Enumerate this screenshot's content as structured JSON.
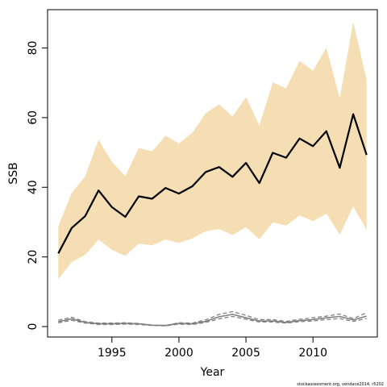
{
  "chart_data": {
    "type": "line",
    "title": "",
    "xlabel": "Year",
    "ylabel": "SSB",
    "xlim": [
      1990.2,
      2014.8
    ],
    "ylim": [
      -3,
      91
    ],
    "x_ticks": [
      1995,
      2000,
      2005,
      2010
    ],
    "y_ticks": [
      0,
      20,
      40,
      60,
      80
    ],
    "grid": false,
    "legend": "none",
    "footnote": "stockassessment.org,  vendace2014, r5202",
    "colors": {
      "band": "#f5deb3",
      "main_line": "#000000",
      "secondary_lines": "#808080"
    },
    "x": [
      1991,
      1992,
      1993,
      1994,
      1995,
      1996,
      1997,
      1998,
      1999,
      2000,
      2001,
      2002,
      2003,
      2004,
      2005,
      2006,
      2007,
      2008,
      2009,
      2010,
      2011,
      2012,
      2013,
      2014
    ],
    "series": [
      {
        "values": [
          21,
          28.3,
          31.7,
          39.1,
          34.3,
          31.5,
          37.4,
          36.7,
          39.8,
          38.2,
          40.3,
          44.4,
          45.8,
          43,
          47,
          41.2,
          49.9,
          48.5,
          54,
          51.8,
          56.1,
          45.6,
          61,
          49.3
        ]
      },
      {
        "lower": [
          13.6,
          18.5,
          20.6,
          25,
          22,
          20.3,
          23.8,
          23.3,
          25,
          24,
          25.3,
          27.4,
          28,
          26.3,
          28.5,
          25.1,
          29.9,
          29,
          31.9,
          30.3,
          32.4,
          26.4,
          34.5,
          27.8
        ],
        "upper": [
          28.8,
          38.4,
          43.1,
          53.7,
          47.3,
          43.2,
          51.3,
          50.3,
          54.8,
          52.6,
          55.7,
          61.3,
          63.8,
          60.3,
          65.9,
          57.7,
          70.1,
          68.4,
          76.3,
          73.5,
          80.1,
          65.6,
          87.5,
          70.9
        ]
      },
      {
        "values": [
          1.4,
          2.2,
          1.2,
          0.8,
          0.8,
          0.9,
          0.8,
          0.4,
          0.3,
          0.9,
          0.8,
          1.5,
          2.8,
          3.5,
          2.5,
          1.6,
          1.6,
          1.2,
          1.7,
          2,
          2.5,
          2.9,
          1.9,
          3
        ]
      },
      {
        "values": [
          1.8,
          2.7,
          1.4,
          1,
          1,
          1.1,
          0.9,
          0.4,
          0.3,
          1.1,
          1,
          1.9,
          3.5,
          4.3,
          3.2,
          2,
          2,
          1.5,
          2.1,
          2.5,
          3,
          3.6,
          2.3,
          4
        ]
      },
      {
        "values": [
          1.1,
          1.8,
          1,
          0.6,
          0.6,
          0.7,
          0.6,
          0.3,
          0.2,
          0.7,
          0.6,
          1.2,
          2.2,
          2.9,
          2.1,
          1.3,
          1.3,
          1,
          1.4,
          1.6,
          2,
          2.3,
          1.5,
          2.3
        ]
      }
    ]
  }
}
